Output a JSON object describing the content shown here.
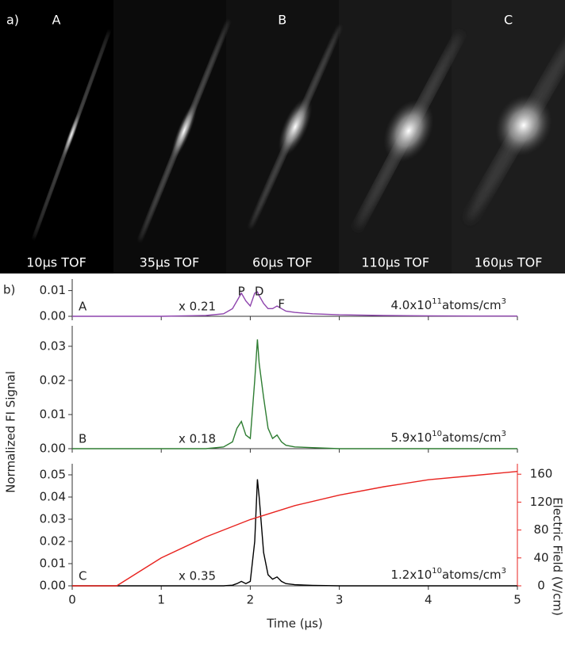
{
  "panel_a": {
    "label": "a)",
    "images": [
      {
        "letter": "A",
        "caption": "10μs TOF"
      },
      {
        "caption": "35μs TOF"
      },
      {
        "letter": "B",
        "caption": "60μs TOF"
      },
      {
        "caption": "110μs TOF"
      },
      {
        "letter": "C",
        "caption": "160μs TOF"
      }
    ]
  },
  "panel_b_label": "b)",
  "chart_data": [
    {
      "type": "line",
      "letter": "A",
      "multiplier": "x 0.21",
      "density": {
        "base": "4.0x10",
        "exponent": "11",
        "unit": "atoms/cm",
        "unit_exponent": "3"
      },
      "peak_labels": [
        "P",
        "D",
        "F"
      ],
      "x": [
        0,
        0.5,
        1,
        1.5,
        1.7,
        1.8,
        1.85,
        1.9,
        1.95,
        2.0,
        2.05,
        2.08,
        2.1,
        2.15,
        2.2,
        2.25,
        2.3,
        2.35,
        2.4,
        2.5,
        2.7,
        3,
        3.5,
        4,
        4.5,
        5
      ],
      "series": [
        {
          "color": "#8e44ad",
          "values": [
            0,
            0,
            0,
            0.0003,
            0.001,
            0.003,
            0.006,
            0.009,
            0.006,
            0.004,
            0.009,
            0.0095,
            0.008,
            0.005,
            0.003,
            0.003,
            0.004,
            0.003,
            0.002,
            0.0015,
            0.001,
            0.0006,
            0.0003,
            0.0002,
            0.0001,
            0.0001
          ]
        }
      ],
      "xlim": [
        0,
        5
      ],
      "xticks": [
        0,
        1,
        2,
        3,
        4,
        5
      ],
      "ylim": [
        0,
        0.0145
      ],
      "yticks": [
        {
          "value": 0,
          "label": "0.00"
        },
        {
          "value": 0.01,
          "label": "0.01"
        }
      ]
    },
    {
      "type": "line",
      "letter": "B",
      "multiplier": "x 0.18",
      "density": {
        "base": "5.9x10",
        "exponent": "10",
        "unit": "atoms/cm",
        "unit_exponent": "3"
      },
      "ylabel": "Normalized FI Signal",
      "x": [
        0,
        0.5,
        1,
        1.5,
        1.7,
        1.8,
        1.85,
        1.9,
        1.95,
        2.0,
        2.05,
        2.08,
        2.1,
        2.15,
        2.2,
        2.25,
        2.3,
        2.35,
        2.4,
        2.5,
        2.7,
        3,
        3.5,
        4,
        4.5,
        5
      ],
      "series": [
        {
          "color": "#2e7d32",
          "values": [
            0,
            0,
            0,
            0,
            0.0005,
            0.002,
            0.006,
            0.008,
            0.004,
            0.003,
            0.02,
            0.032,
            0.025,
            0.015,
            0.006,
            0.003,
            0.004,
            0.002,
            0.001,
            0.0005,
            0.0003,
            0,
            0,
            0,
            0,
            0
          ]
        }
      ],
      "xlim": [
        0,
        5
      ],
      "xticks": [
        0,
        1,
        2,
        3,
        4,
        5
      ],
      "ylim": [
        0,
        0.036
      ],
      "yticks": [
        {
          "value": 0,
          "label": "0.00"
        },
        {
          "value": 0.01,
          "label": "0.01"
        },
        {
          "value": 0.02,
          "label": "0.02"
        },
        {
          "value": 0.03,
          "label": "0.03"
        }
      ]
    },
    {
      "type": "line",
      "letter": "C",
      "multiplier": "x 0.35",
      "density": {
        "base": "1.2x10",
        "exponent": "10",
        "unit": "atoms/cm",
        "unit_exponent": "3"
      },
      "xlabel": "Time (μs)",
      "y2label": "Electric Field (V/cm)",
      "x": [
        0,
        0.5,
        1,
        1.5,
        1.7,
        1.8,
        1.85,
        1.9,
        1.95,
        2.0,
        2.05,
        2.08,
        2.1,
        2.15,
        2.2,
        2.25,
        2.3,
        2.35,
        2.4,
        2.5,
        2.7,
        3,
        3.5,
        4,
        4.5,
        5
      ],
      "series": [
        {
          "color": "#000000",
          "values": [
            0,
            0,
            0,
            0,
            0,
            0.0003,
            0.001,
            0.002,
            0.001,
            0.002,
            0.02,
            0.048,
            0.04,
            0.015,
            0.005,
            0.003,
            0.004,
            0.002,
            0.001,
            0.0005,
            0.0002,
            0,
            0,
            0,
            0,
            0
          ]
        },
        {
          "color": "#e8231f",
          "axis": "y2",
          "x": [
            0,
            0.5,
            0.75,
            1,
            1.5,
            2,
            2.5,
            3,
            3.5,
            4,
            4.5,
            5
          ],
          "values": [
            0,
            0,
            20,
            40,
            70,
            95,
            115,
            130,
            142,
            152,
            158,
            164
          ]
        }
      ],
      "xlim": [
        0,
        5
      ],
      "xticks": [
        0,
        1,
        2,
        3,
        4,
        5
      ],
      "ylim": [
        0,
        0.055
      ],
      "yticks": [
        {
          "value": 0,
          "label": "0.00"
        },
        {
          "value": 0.01,
          "label": "0.01"
        },
        {
          "value": 0.02,
          "label": "0.02"
        },
        {
          "value": 0.03,
          "label": "0.03"
        },
        {
          "value": 0.04,
          "label": "0.04"
        },
        {
          "value": 0.05,
          "label": "0.05"
        }
      ],
      "y2lim": [
        0,
        175
      ],
      "y2ticks": [
        0,
        40,
        80,
        120,
        160
      ]
    }
  ]
}
